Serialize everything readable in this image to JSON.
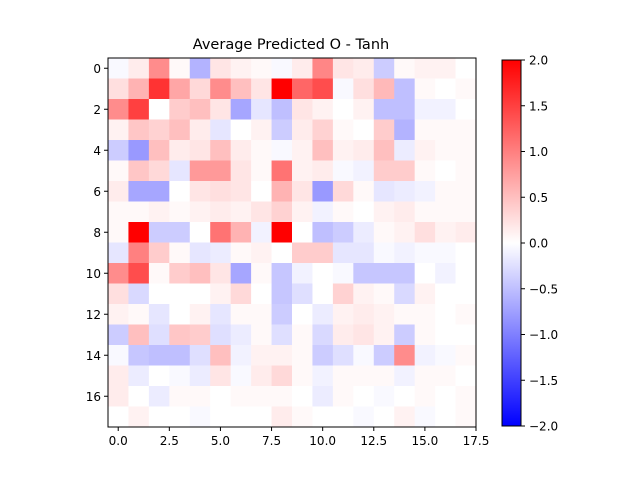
{
  "chart_data": {
    "type": "heatmap",
    "title": "Average Predicted O - Tanh",
    "xlabel": "",
    "ylabel": "",
    "xlim": [
      -0.5,
      17.5
    ],
    "ylim": [
      17.5,
      -0.5
    ],
    "xticks": [
      0.0,
      2.5,
      5.0,
      7.5,
      10.0,
      12.5,
      15.0,
      17.5
    ],
    "xtick_labels": [
      "0.0",
      "2.5",
      "5.0",
      "7.5",
      "10.0",
      "12.5",
      "15.0",
      "17.5"
    ],
    "yticks": [
      0,
      2,
      4,
      6,
      8,
      10,
      12,
      14,
      16
    ],
    "ytick_labels": [
      "0",
      "2",
      "4",
      "6",
      "8",
      "10",
      "12",
      "14",
      "16"
    ],
    "colormap": "bwr",
    "vmin": -2.0,
    "vmax": 2.0,
    "colorbar_ticks": [
      -2.0,
      -1.5,
      -1.0,
      -0.5,
      0.0,
      0.5,
      1.0,
      1.5,
      2.0
    ],
    "colorbar_tick_labels": [
      "−2.0",
      "−1.5",
      "−1.0",
      "−0.5",
      "0.0",
      "0.5",
      "1.0",
      "1.5",
      "2.0"
    ],
    "grid": false,
    "values": [
      [
        -0.05,
        0.15,
        0.9,
        0.05,
        -0.6,
        0.2,
        0.1,
        0.05,
        -0.05,
        0.15,
        0.95,
        0.2,
        0.15,
        -0.4,
        0.05,
        0.1,
        0.1,
        0.0
      ],
      [
        0.25,
        0.6,
        1.6,
        0.7,
        0.3,
        0.9,
        0.5,
        0.2,
        2.0,
        1.2,
        1.4,
        -0.05,
        0.25,
        0.55,
        -0.5,
        0.05,
        0.0,
        0.05
      ],
      [
        0.9,
        1.5,
        0.0,
        0.4,
        0.5,
        0.2,
        -0.7,
        -0.2,
        -0.5,
        0.2,
        0.1,
        0.0,
        0.1,
        -0.5,
        -0.5,
        -0.1,
        -0.1,
        0.0
      ],
      [
        0.1,
        0.45,
        0.35,
        0.5,
        0.15,
        -0.2,
        0.0,
        0.1,
        -0.4,
        0.15,
        0.35,
        0.05,
        0.0,
        0.4,
        -0.6,
        0.05,
        0.05,
        0.05
      ],
      [
        -0.4,
        -0.8,
        0.5,
        0.15,
        0.2,
        0.5,
        0.15,
        0.05,
        -0.05,
        0.1,
        0.5,
        0.1,
        0.15,
        0.5,
        -0.15,
        0.1,
        0.05,
        0.05
      ],
      [
        0.05,
        0.45,
        0.3,
        -0.2,
        0.8,
        0.8,
        0.2,
        0.05,
        1.1,
        0.1,
        0.15,
        -0.05,
        -0.1,
        0.4,
        0.4,
        0.05,
        0.0,
        0.05
      ],
      [
        0.15,
        -0.7,
        -0.7,
        0.0,
        0.2,
        0.25,
        0.2,
        0.0,
        0.6,
        0.2,
        -0.8,
        0.3,
        0.05,
        -0.2,
        -0.15,
        -0.1,
        0.05,
        0.05
      ],
      [
        0.05,
        0.05,
        0.1,
        0.05,
        0.1,
        0.15,
        0.1,
        0.2,
        0.35,
        0.1,
        -0.1,
        0.05,
        0.0,
        0.1,
        0.15,
        0.05,
        0.05,
        0.05
      ],
      [
        0.05,
        2.0,
        -0.4,
        -0.4,
        0.0,
        1.1,
        0.6,
        -0.1,
        2.0,
        0.0,
        -0.5,
        -0.4,
        -0.15,
        0.05,
        0.1,
        0.25,
        0.1,
        0.15
      ],
      [
        -0.2,
        1.0,
        0.4,
        0.05,
        -0.2,
        -0.15,
        0.05,
        0.1,
        0.0,
        0.4,
        0.4,
        -0.2,
        -0.2,
        -0.05,
        -0.1,
        -0.05,
        -0.05,
        0.0
      ],
      [
        0.9,
        1.4,
        0.05,
        0.4,
        0.5,
        0.2,
        -0.7,
        0.05,
        -0.45,
        -0.1,
        0.0,
        -0.05,
        -0.45,
        -0.45,
        -0.45,
        0.0,
        -0.1,
        0.0
      ],
      [
        0.25,
        -0.3,
        0.0,
        0.0,
        0.0,
        0.1,
        0.3,
        0.0,
        -0.45,
        -0.25,
        0.0,
        0.35,
        0.1,
        0.05,
        -0.3,
        0.1,
        0.0,
        0.0
      ],
      [
        0.1,
        0.05,
        -0.2,
        0.0,
        0.1,
        -0.2,
        0.05,
        0.05,
        -0.4,
        0.0,
        -0.15,
        0.1,
        0.15,
        0.1,
        0.05,
        0.05,
        0.0,
        0.05
      ],
      [
        -0.4,
        0.5,
        -0.25,
        0.45,
        0.4,
        -0.25,
        -0.15,
        0.05,
        -0.25,
        0.05,
        -0.3,
        0.15,
        0.2,
        0.1,
        -0.4,
        0.05,
        0.0,
        0.0
      ],
      [
        -0.05,
        -0.45,
        -0.5,
        -0.5,
        -0.25,
        0.5,
        -0.1,
        0.1,
        0.1,
        0.05,
        -0.4,
        -0.25,
        -0.05,
        -0.4,
        0.9,
        -0.1,
        -0.05,
        0.05
      ],
      [
        0.15,
        -0.15,
        0.0,
        -0.05,
        -0.15,
        0.2,
        -0.05,
        0.15,
        0.3,
        0.05,
        -0.1,
        0.05,
        0.05,
        0.05,
        -0.1,
        0.05,
        0.05,
        0.0
      ],
      [
        0.15,
        0.0,
        -0.15,
        0.05,
        0.05,
        0.0,
        0.05,
        0.05,
        0.05,
        0.0,
        -0.15,
        0.05,
        0.0,
        -0.05,
        0.0,
        0.05,
        0.0,
        0.05
      ],
      [
        0.0,
        0.1,
        0.0,
        0.0,
        -0.05,
        0.0,
        0.0,
        0.0,
        0.15,
        0.05,
        0.0,
        0.0,
        -0.05,
        0.0,
        0.1,
        -0.05,
        0.0,
        0.05
      ]
    ]
  }
}
